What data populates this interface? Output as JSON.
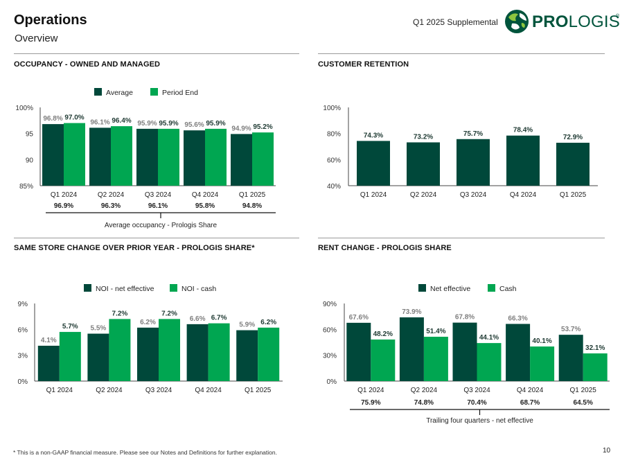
{
  "header": {
    "title": "Operations",
    "subtitle": "Overview",
    "supplemental": "Q1 2025 Supplemental",
    "logo_text_bold": "PRO",
    "logo_text_light": "LOGIS",
    "logo_reg": "®"
  },
  "sections": {
    "occupancy": "OCCUPANCY - OWNED AND MANAGED",
    "retention": "CUSTOMER RETENTION",
    "same_store": "SAME STORE CHANGE OVER PRIOR YEAR - PROLOGIS SHARE*",
    "rent_change": "RENT CHANGE - PROLOGIS SHARE"
  },
  "colors": {
    "dark_green": "#00483A",
    "bright_green": "#00A651",
    "gray_label": "#7f7f7f"
  },
  "footnote": "* This is a non-GAAP financial measure. Please see our Notes and Definitions for further explanation.",
  "page_number": "10",
  "chart_data": [
    {
      "id": "occupancy",
      "type": "bar",
      "categories": [
        "Q1 2024",
        "Q2 2024",
        "Q3 2024",
        "Q4 2024",
        "Q1 2025"
      ],
      "series": [
        {
          "name": "Average",
          "values": [
            96.8,
            96.1,
            95.9,
            95.6,
            94.9
          ],
          "labels": [
            "96.8%",
            "96.1%",
            "95.9%",
            "95.6%",
            "94.9%"
          ],
          "color": "#00483A",
          "label_color": "#7f7f7f"
        },
        {
          "name": "Period End",
          "values": [
            97.0,
            96.4,
            95.9,
            95.9,
            95.2
          ],
          "labels": [
            "97.0%",
            "96.4%",
            "95.9%",
            "95.9%",
            "95.2%"
          ],
          "color": "#00A651",
          "label_color": "#1f3a33"
        }
      ],
      "ylim": [
        85,
        100
      ],
      "yticks": [
        85,
        90,
        95,
        100
      ],
      "ytick_labels": [
        "85%",
        "90",
        "95",
        "100%"
      ],
      "legend_position": "top",
      "footer_values": [
        "96.9%",
        "96.3%",
        "96.1%",
        "95.8%",
        "94.8%"
      ],
      "footer_label": "Average occupancy - Prologis Share"
    },
    {
      "id": "retention",
      "type": "bar",
      "categories": [
        "Q1 2024",
        "Q2 2024",
        "Q3 2024",
        "Q4 2024",
        "Q1 2025"
      ],
      "series": [
        {
          "values": [
            74.3,
            73.2,
            75.7,
            78.4,
            72.9
          ],
          "labels": [
            "74.3%",
            "73.2%",
            "75.7%",
            "78.4%",
            "72.9%"
          ],
          "color": "#00483A",
          "label_color": "#1f3a33"
        }
      ],
      "ylim": [
        40,
        100
      ],
      "yticks": [
        40,
        60,
        80,
        100
      ],
      "ytick_labels": [
        "40%",
        "60%",
        "80%",
        "100%"
      ]
    },
    {
      "id": "same_store",
      "type": "bar",
      "categories": [
        "Q1 2024",
        "Q2 2024",
        "Q3 2024",
        "Q4 2024",
        "Q1 2025"
      ],
      "series": [
        {
          "name": "NOI - net effective",
          "values": [
            4.1,
            5.5,
            6.2,
            6.6,
            5.9
          ],
          "labels": [
            "4.1%",
            "5.5%",
            "6.2%",
            "6.6%",
            "5.9%"
          ],
          "color": "#00483A",
          "label_color": "#7f7f7f"
        },
        {
          "name": "NOI - cash",
          "values": [
            5.7,
            7.2,
            7.2,
            6.7,
            6.2
          ],
          "labels": [
            "5.7%",
            "7.2%",
            "7.2%",
            "6.7%",
            "6.2%"
          ],
          "color": "#00A651",
          "label_color": "#1f3a33"
        }
      ],
      "ylim": [
        0,
        9
      ],
      "yticks": [
        0,
        3,
        6,
        9
      ],
      "ytick_labels": [
        "0%",
        "3%",
        "6%",
        "9%"
      ],
      "legend_position": "top"
    },
    {
      "id": "rent_change",
      "type": "bar",
      "categories": [
        "Q1 2024",
        "Q2 2024",
        "Q3 2024",
        "Q4 2024",
        "Q1 2025"
      ],
      "series": [
        {
          "name": "Net effective",
          "values": [
            67.6,
            73.9,
            67.8,
            66.3,
            53.7
          ],
          "labels": [
            "67.6%",
            "73.9%",
            "67.8%",
            "66.3%",
            "53.7%"
          ],
          "color": "#00483A",
          "label_color": "#7f7f7f"
        },
        {
          "name": "Cash",
          "values": [
            48.2,
            51.4,
            44.1,
            40.1,
            32.1
          ],
          "labels": [
            "48.2%",
            "51.4%",
            "44.1%",
            "40.1%",
            "32.1%"
          ],
          "color": "#00A651",
          "label_color": "#1f3a33"
        }
      ],
      "ylim": [
        0,
        90
      ],
      "yticks": [
        0,
        30,
        60,
        90
      ],
      "ytick_labels": [
        "0%",
        "30%",
        "60%",
        "90%"
      ],
      "legend_position": "top",
      "footer_values": [
        "75.9%",
        "74.8%",
        "70.4%",
        "68.7%",
        "64.5%"
      ],
      "footer_label": "Trailing four quarters - net effective"
    }
  ]
}
